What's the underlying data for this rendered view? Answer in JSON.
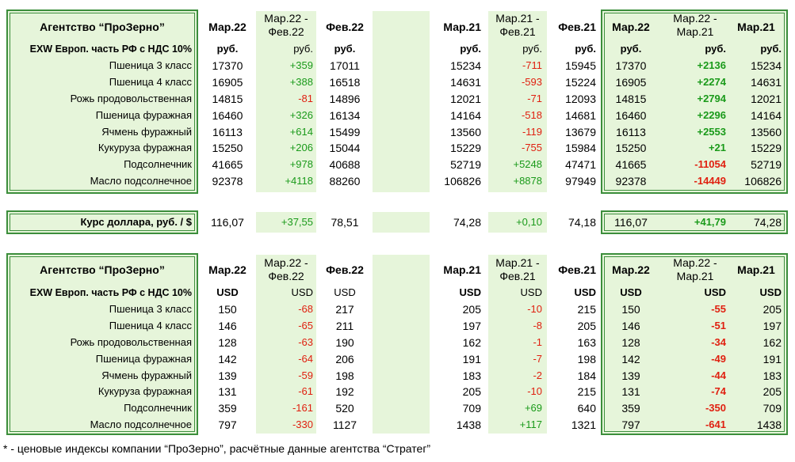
{
  "agency_title": "Агентство “ПроЗерно”",
  "block1": {
    "subtitle": "EXW Европ. часть РФ с НДС 10%",
    "headers": {
      "mar22": "Мар.22",
      "chg_mar22_feb22": "Мар.22 - Фев.22",
      "feb22": "Фев.22",
      "mar21": "Мар.21",
      "chg_mar21_feb21": "Мар.21 - Фев.21",
      "feb21": "Фев.21",
      "r_mar22": "Мар.22",
      "r_chg": "Мар.22 - Мар.21",
      "r_mar21": "Мар.21"
    },
    "units": [
      "руб.",
      "руб.",
      "руб.",
      "руб.",
      "руб.",
      "руб.",
      "руб.",
      "руб.",
      "руб."
    ],
    "rows": [
      {
        "name": "Пшеница 3 класс",
        "v": [
          "17370",
          "+359",
          "17011",
          "15234",
          "-711",
          "15945",
          "17370",
          "+2136",
          "15234"
        ]
      },
      {
        "name": "Пшеница 4 класс",
        "v": [
          "16905",
          "+388",
          "16518",
          "14631",
          "-593",
          "15224",
          "16905",
          "+2274",
          "14631"
        ]
      },
      {
        "name": "Рожь продовольственная",
        "v": [
          "14815",
          "-81",
          "14896",
          "12021",
          "-71",
          "12093",
          "14815",
          "+2794",
          "12021"
        ]
      },
      {
        "name": "Пшеница фуражная",
        "v": [
          "16460",
          "+326",
          "16134",
          "14164",
          "-518",
          "14681",
          "16460",
          "+2296",
          "14164"
        ]
      },
      {
        "name": "Ячмень фуражный",
        "v": [
          "16113",
          "+614",
          "15499",
          "13560",
          "-119",
          "13679",
          "16113",
          "+2553",
          "13560"
        ]
      },
      {
        "name": "Кукуруза фуражная",
        "v": [
          "15250",
          "+206",
          "15044",
          "15229",
          "-755",
          "15984",
          "15250",
          "+21",
          "15229"
        ]
      },
      {
        "name": "Подсолнечник",
        "v": [
          "41665",
          "+978",
          "40688",
          "52719",
          "+5248",
          "47471",
          "41665",
          "-11054",
          "52719"
        ]
      },
      {
        "name": "Масло подсолнечное",
        "v": [
          "92378",
          "+4118",
          "88260",
          "106826",
          "+8878",
          "97949",
          "92378",
          "-14449",
          "106826"
        ]
      }
    ]
  },
  "rate": {
    "label": "Курс доллара, руб. / $",
    "v": [
      "116,07",
      "+37,55",
      "78,51",
      "74,28",
      "+0,10",
      "74,18",
      "116,07",
      "+41,79",
      "74,28"
    ]
  },
  "block2": {
    "subtitle": "EXW Европ. часть РФ с НДС 10%",
    "headers": {
      "mar22": "Мар.22",
      "chg_mar22_feb22": "Мар.22 - Фев.22",
      "feb22": "Фев.22",
      "mar21": "Мар.21",
      "chg_mar21_feb21": "Мар.21 - Фев.21",
      "feb21": "Фев.21",
      "r_mar22": "Мар.22",
      "r_chg": "Мар.22 - Мар.21",
      "r_mar21": "Мар.21"
    },
    "units": [
      "USD",
      "USD",
      "USD",
      "USD",
      "USD",
      "USD",
      "USD",
      "USD",
      "USD"
    ],
    "rows": [
      {
        "name": "Пшеница 3 класс",
        "v": [
          "150",
          "-68",
          "217",
          "205",
          "-10",
          "215",
          "150",
          "-55",
          "205"
        ]
      },
      {
        "name": "Пшеница 4 класс",
        "v": [
          "146",
          "-65",
          "211",
          "197",
          "-8",
          "205",
          "146",
          "-51",
          "197"
        ]
      },
      {
        "name": "Рожь продовольственная",
        "v": [
          "128",
          "-63",
          "190",
          "162",
          "-1",
          "163",
          "128",
          "-34",
          "162"
        ]
      },
      {
        "name": "Пшеница фуражная",
        "v": [
          "142",
          "-64",
          "206",
          "191",
          "-7",
          "198",
          "142",
          "-49",
          "191"
        ]
      },
      {
        "name": "Ячмень фуражный",
        "v": [
          "139",
          "-59",
          "198",
          "183",
          "-2",
          "184",
          "139",
          "-44",
          "183"
        ]
      },
      {
        "name": "Кукуруза фуражная",
        "v": [
          "131",
          "-61",
          "192",
          "205",
          "-10",
          "215",
          "131",
          "-74",
          "205"
        ]
      },
      {
        "name": "Подсолнечник",
        "v": [
          "359",
          "-161",
          "520",
          "709",
          "+69",
          "640",
          "359",
          "-350",
          "709"
        ]
      },
      {
        "name": "Масло подсолнечное",
        "v": [
          "797",
          "-330",
          "1127",
          "1438",
          "+117",
          "1321",
          "797",
          "-641",
          "1438"
        ]
      }
    ]
  },
  "footnote": "* - ценовые индексы компании “ПроЗерно”, расчётные данные агентства “Стратег”",
  "colors": {
    "positive": "#1a9a1a",
    "negative": "#e02010",
    "panel": "#e6f5da",
    "border": "#3c8e3c"
  }
}
